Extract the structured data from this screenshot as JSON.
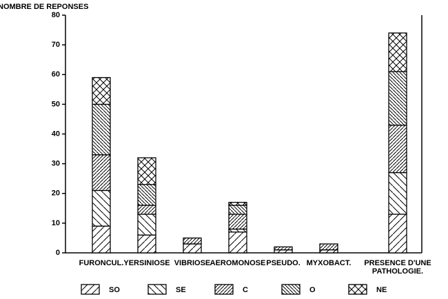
{
  "chart_data": {
    "type": "stacked-bar",
    "y_label": "NOMBRE DE REPONSES",
    "categories": [
      "FURONCUL.",
      "YERSINIOSE",
      "VIBRIOSE",
      "AEROMONOSE",
      "PSEUDO.",
      "MYXOBACT.",
      "PRESENCE D'UNE\nPATHOLOGIE."
    ],
    "series": [
      {
        "name": "SO",
        "values": [
          9,
          6,
          3,
          7,
          1,
          1,
          13
        ]
      },
      {
        "name": "SE",
        "values": [
          12,
          7,
          0,
          1,
          0,
          0,
          14
        ]
      },
      {
        "name": "C",
        "values": [
          12,
          3,
          2,
          5,
          1,
          2,
          16
        ]
      },
      {
        "name": "O",
        "values": [
          17,
          7,
          0,
          3,
          0,
          0,
          18
        ]
      },
      {
        "name": "NE",
        "values": [
          9,
          9,
          0,
          1,
          0,
          0,
          13
        ]
      }
    ],
    "ylim": [
      0,
      80
    ],
    "yticks": [
      0,
      10,
      20,
      30,
      40,
      50,
      60,
      70,
      80
    ]
  }
}
